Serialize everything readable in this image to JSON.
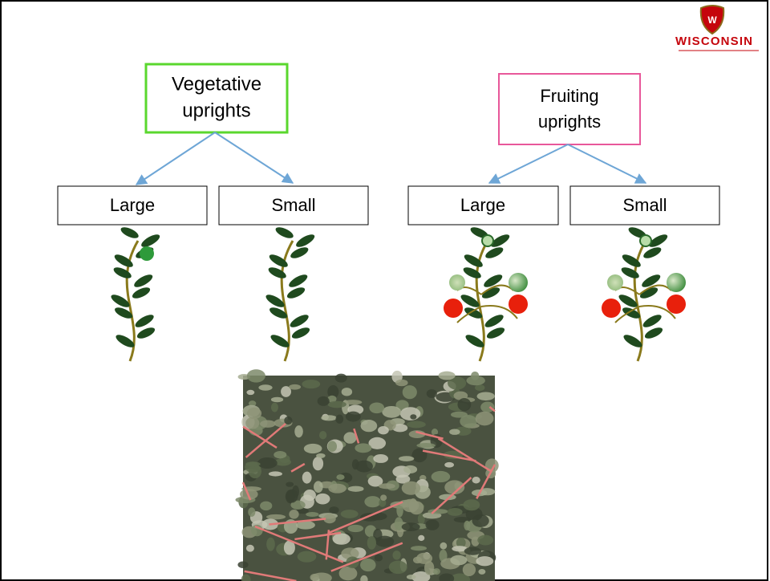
{
  "logo": {
    "text": "WISCONSIN"
  },
  "nodes": [
    {
      "label": [
        "Vegetative",
        "uprights"
      ]
    },
    {
      "label": [
        "Fruiting",
        "uprights"
      ]
    },
    {
      "label": [
        "Large"
      ]
    },
    {
      "label": [
        "Small"
      ]
    },
    {
      "label": [
        "Large"
      ]
    },
    {
      "label": [
        "Small"
      ]
    }
  ]
}
